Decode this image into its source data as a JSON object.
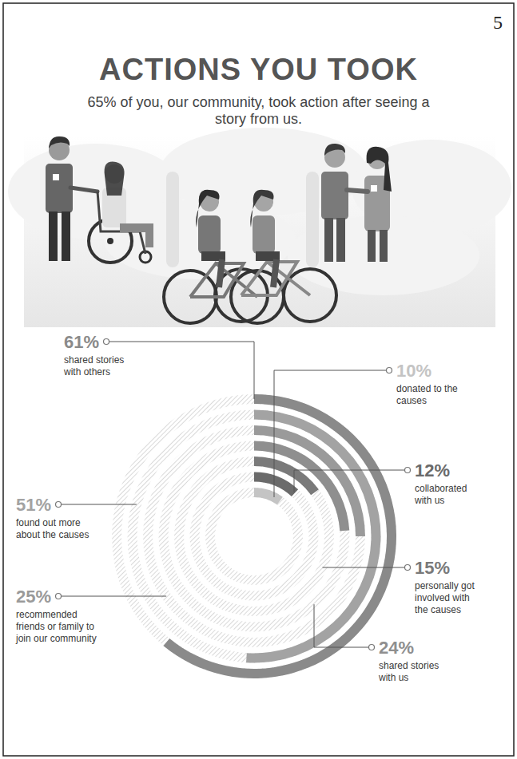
{
  "page": "5",
  "chart_data": {
    "type": "radial_bar",
    "title": "ACTIONS YOU TOOK",
    "subtitle": "65% of you, our community, took action after seeing a story from us.",
    "categories": [
      "shared stories with others",
      "found out more about the causes",
      "recommended friends or family to join our community",
      "shared stories with us",
      "personally got involved with the causes",
      "collaborated with us",
      "donated to the causes"
    ],
    "values": [
      61,
      51,
      25,
      24,
      15,
      12,
      10
    ],
    "value_labels": [
      "61%",
      "51%",
      "25%",
      "24%",
      "15%",
      "12%",
      "10%"
    ],
    "colors": [
      "#8a8a8a",
      "#a3a3a3",
      "#9a9a9a",
      "#8f8f8f",
      "#7a7a7a",
      "#6b6b6b",
      "#c4c4c4"
    ],
    "ylim": [
      0,
      100
    ],
    "data_labels": true,
    "tick_labels": false
  }
}
